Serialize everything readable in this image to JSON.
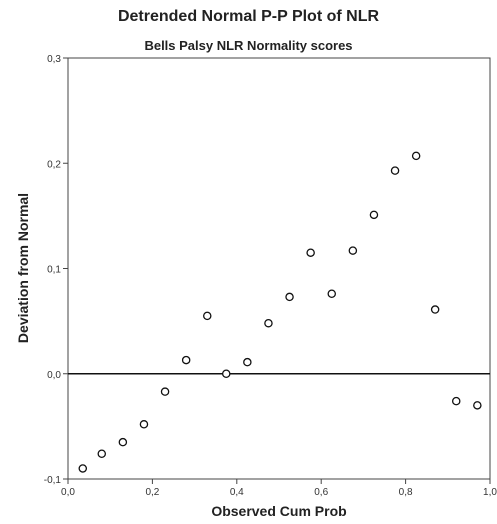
{
  "chart_data": {
    "type": "scatter",
    "title": "Detrended Normal P-P Plot of NLR",
    "subtitle": "Bells Palsy NLR Normality scores",
    "xlabel": "Observed Cum Prob",
    "ylabel": "Deviation from Normal",
    "xlim": [
      0.0,
      1.0
    ],
    "ylim": [
      -0.1,
      0.3
    ],
    "xticks": [
      0.0,
      0.2,
      0.4,
      0.6,
      0.8,
      1.0
    ],
    "xtick_labels": [
      "0,0",
      "0,2",
      "0,4",
      "0,6",
      "0,8",
      "1,0"
    ],
    "yticks": [
      -0.1,
      0.0,
      0.1,
      0.2,
      0.3
    ],
    "ytick_labels": [
      "-0,1",
      "0,0",
      "0,1",
      "0,2",
      "0,3"
    ],
    "reference_line_y": 0.0,
    "grid": false,
    "marker": "open-circle",
    "points": [
      {
        "x": 0.035,
        "y": -0.09
      },
      {
        "x": 0.08,
        "y": -0.076
      },
      {
        "x": 0.13,
        "y": -0.065
      },
      {
        "x": 0.18,
        "y": -0.048
      },
      {
        "x": 0.23,
        "y": -0.017
      },
      {
        "x": 0.28,
        "y": 0.013
      },
      {
        "x": 0.33,
        "y": 0.055
      },
      {
        "x": 0.375,
        "y": 0.0
      },
      {
        "x": 0.425,
        "y": 0.011
      },
      {
        "x": 0.475,
        "y": 0.048
      },
      {
        "x": 0.525,
        "y": 0.073
      },
      {
        "x": 0.575,
        "y": 0.115
      },
      {
        "x": 0.625,
        "y": 0.076
      },
      {
        "x": 0.675,
        "y": 0.117
      },
      {
        "x": 0.725,
        "y": 0.151
      },
      {
        "x": 0.775,
        "y": 0.193
      },
      {
        "x": 0.825,
        "y": 0.207
      },
      {
        "x": 0.87,
        "y": 0.061
      },
      {
        "x": 0.92,
        "y": -0.026
      },
      {
        "x": 0.97,
        "y": -0.03
      }
    ]
  }
}
